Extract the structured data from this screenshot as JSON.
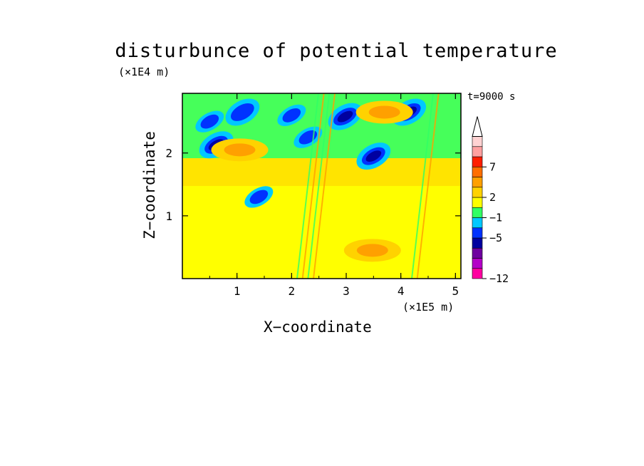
{
  "chart_data": {
    "type": "heatmap",
    "title": "disturbunce of potential temperature",
    "xlabel": "X−coordinate",
    "ylabel": "Z−coordinate",
    "x_unit": "(×1E5 m)",
    "z_unit": "(×1E4 m)",
    "time_label": "t=9000 s",
    "xlim": [
      0,
      5.1
    ],
    "ylim": [
      0,
      2.95
    ],
    "x_ticks": [
      "1",
      "2",
      "3",
      "4",
      "5"
    ],
    "y_ticks": [
      "1",
      "2"
    ],
    "colorbar": {
      "labels": [
        "7",
        "2",
        "−1",
        "−5",
        "−12"
      ],
      "colors": [
        "#ff00a0",
        "#b400c8",
        "#6e00a0",
        "#0000a0",
        "#0032ff",
        "#00c8ff",
        "#32ff64",
        "#ffff00",
        "#ffd200",
        "#ffa000",
        "#ff6e00",
        "#ff1e00",
        "#ffa0a0",
        "#ffd2d2"
      ],
      "extend_top": true
    },
    "background_color": "#ffff00",
    "features": [
      {
        "x": 0.62,
        "z": 2.13,
        "value": -6
      },
      {
        "x": 3.5,
        "z": 1.95,
        "value": -6
      },
      {
        "x": 4.15,
        "z": 2.65,
        "value": -6
      },
      {
        "x": 2.98,
        "z": 2.58,
        "value": -6
      },
      {
        "x": 1.1,
        "z": 2.65,
        "value": -5
      },
      {
        "x": 2.3,
        "z": 2.25,
        "value": -4
      },
      {
        "x": 3.48,
        "z": 0.45,
        "value": 3
      },
      {
        "x": 3.7,
        "z": 2.65,
        "value": 3
      },
      {
        "x": 1.05,
        "z": 2.05,
        "value": 3
      },
      {
        "x": 0.5,
        "z": 2.5,
        "value": -2
      },
      {
        "x": 2.0,
        "z": 2.6,
        "value": -1
      },
      {
        "x": 1.4,
        "z": 1.3,
        "value": -1
      }
    ]
  }
}
